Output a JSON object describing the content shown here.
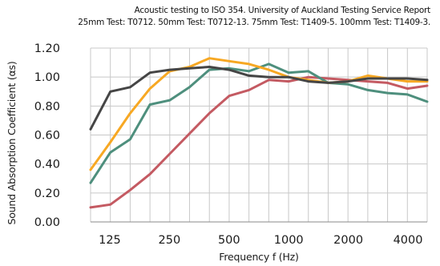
{
  "chart_data": {
    "type": "line",
    "title": "Acoustic testing to ISO 354. University of Auckland Testing Service Report",
    "subtitle": "25mm Test: T0712. 50mm Test: T0712-13. 75mm Test: T1409-5. 100mm Test: T1409-3.",
    "xlabel": "Frequency f (Hz)",
    "ylabel": "Sound Absorption Coefficient (αs)",
    "ylim": [
      0,
      1.2
    ],
    "y_ticks": [
      "0.00",
      "0.20",
      "0.40",
      "0.60",
      "0.80",
      "1.00",
      "1.20"
    ],
    "x_scale": "log",
    "x_tick_labels": [
      "125",
      "250",
      "500",
      "1000",
      "2000",
      "4000"
    ],
    "grid": true,
    "x": [
      100,
      125,
      160,
      200,
      250,
      315,
      400,
      500,
      630,
      800,
      1000,
      1250,
      1600,
      2000,
      2500,
      3150,
      4000,
      5000
    ],
    "series": [
      {
        "color": "#c45a62",
        "values": [
          0.1,
          0.12,
          0.22,
          0.33,
          0.47,
          0.61,
          0.75,
          0.87,
          0.91,
          0.98,
          0.97,
          1.0,
          0.99,
          0.98,
          0.97,
          0.96,
          0.92,
          0.94
        ]
      },
      {
        "color": "#4e8f7d",
        "values": [
          0.27,
          0.48,
          0.57,
          0.81,
          0.84,
          0.93,
          1.05,
          1.06,
          1.04,
          1.09,
          1.03,
          1.04,
          0.96,
          0.95,
          0.91,
          0.89,
          0.88,
          0.83
        ]
      },
      {
        "color": "#f7a823",
        "values": [
          0.36,
          0.55,
          0.75,
          0.92,
          1.04,
          1.07,
          1.13,
          1.11,
          1.09,
          1.05,
          1.0,
          0.98,
          0.96,
          0.97,
          1.01,
          0.99,
          0.97,
          0.97
        ]
      },
      {
        "color": "#454545",
        "values": [
          0.64,
          0.9,
          0.93,
          1.03,
          1.05,
          1.06,
          1.07,
          1.05,
          1.01,
          1.0,
          1.0,
          0.97,
          0.96,
          0.97,
          0.99,
          0.99,
          0.99,
          0.98
        ]
      }
    ]
  }
}
